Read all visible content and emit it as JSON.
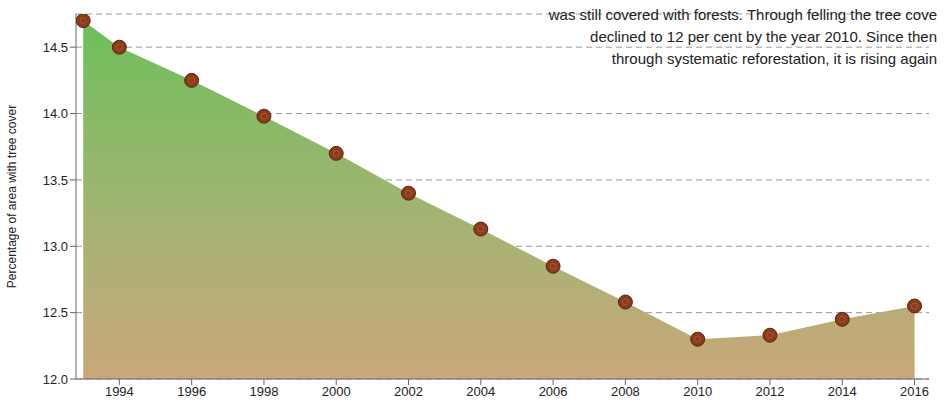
{
  "chart_data": {
    "type": "area",
    "annotation": [
      "was still covered with forests. Through felling the tree cove",
      "declined to 12 per cent by the year 2010. Since then",
      "through systematic reforestation, it is rising again"
    ],
    "y_label": "Percentage of area with tree cover",
    "x": [
      1993,
      1994,
      1996,
      1998,
      2000,
      2002,
      2004,
      2006,
      2008,
      2010,
      2012,
      2014,
      2016
    ],
    "values": [
      14.7,
      14.5,
      14.25,
      13.98,
      13.7,
      13.4,
      13.13,
      12.85,
      12.58,
      12.3,
      12.33,
      12.45,
      12.55
    ],
    "color": "#6dbf5a",
    "marker": "circle",
    "xlim": [
      1992.8,
      2016.4
    ],
    "xticks": [
      1994,
      1996,
      1998,
      2000,
      2002,
      2004,
      2006,
      2008,
      2010,
      2012,
      2014,
      2016
    ],
    "ylim": [
      12.0,
      14.75
    ],
    "yticks": [
      {
        "value": 12,
        "label": "12.0"
      },
      12.5,
      {
        "value": 13,
        "label": "13.0"
      },
      13.5,
      {
        "value": 14,
        "label": "14.0"
      },
      14.5
    ],
    "grid": true
  }
}
